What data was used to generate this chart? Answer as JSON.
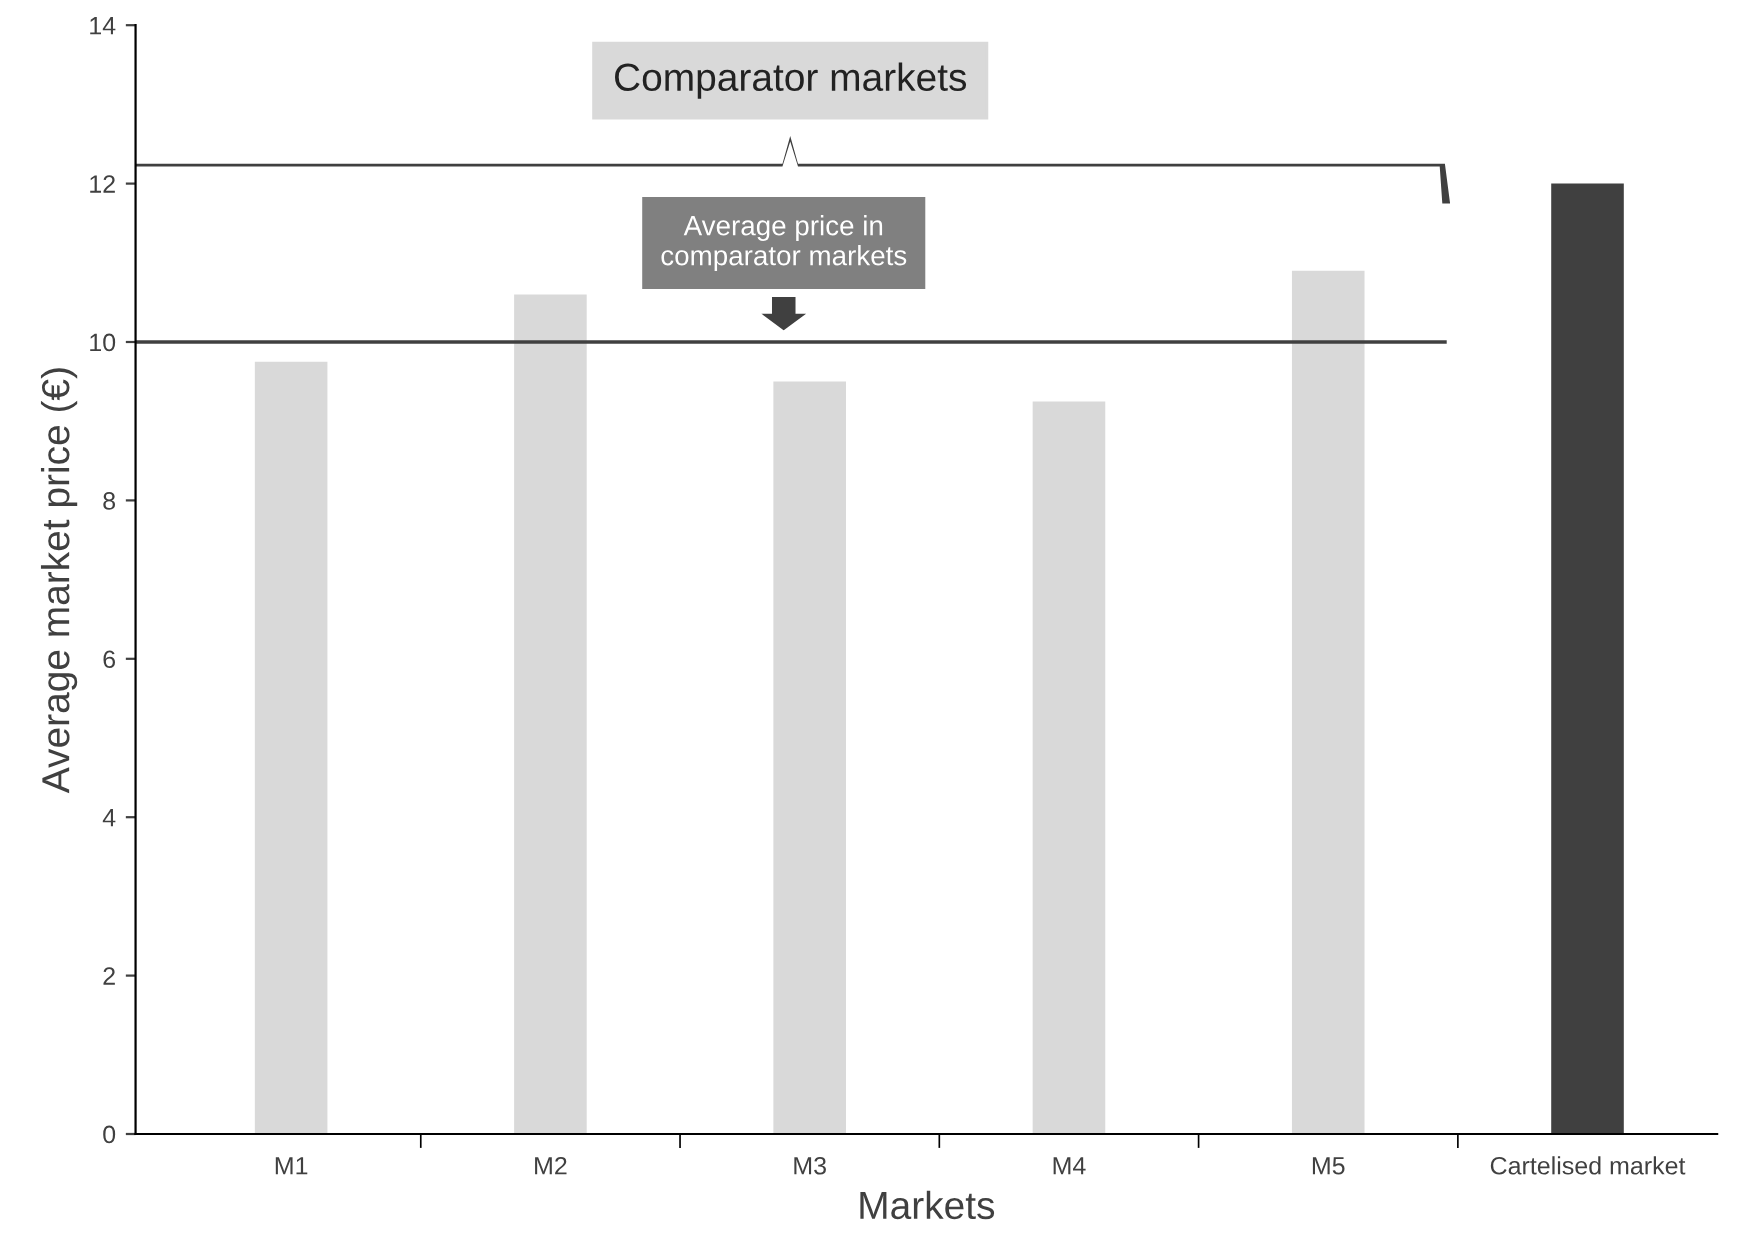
{
  "chart_data": {
    "type": "bar",
    "xlabel": "Markets",
    "ylabel": "Average market price (€)",
    "categories": [
      "M1",
      "M2",
      "M3",
      "M4",
      "M5",
      "Cartelised market"
    ],
    "values": [
      9.75,
      10.6,
      9.5,
      9.25,
      10.9,
      12.0
    ],
    "colors": [
      "#d9d9d9",
      "#d9d9d9",
      "#d9d9d9",
      "#d9d9d9",
      "#d9d9d9",
      "#404040"
    ],
    "ylim": [
      0,
      14
    ],
    "yticks": [
      0,
      2,
      4,
      6,
      8,
      10,
      12,
      14
    ],
    "ref_lines": [
      {
        "axis": "y",
        "value": 10,
        "label": "Average price in\ncomparator markets",
        "color": "#404040"
      }
    ],
    "annotations": [
      "Comparator markets"
    ],
    "grid": false
  }
}
